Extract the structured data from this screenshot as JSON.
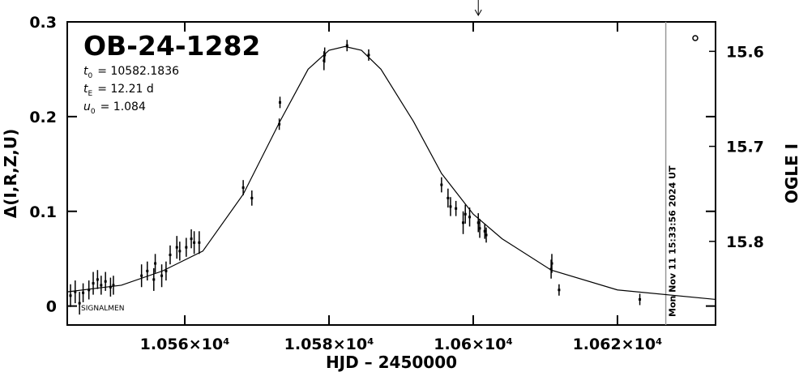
{
  "chart_data": {
    "type": "scatter",
    "title": "OB-24-1282",
    "params": [
      {
        "symbol": "t",
        "sub": "0",
        "text": "= 10582.1836"
      },
      {
        "symbol": "t",
        "sub": "E",
        "text": "= 12.21 d"
      },
      {
        "symbol": "u",
        "sub": "0",
        "text": "= 1.084"
      }
    ],
    "xlabel": "HJD – 2450000",
    "ylabel": "Δ(I,R,Z,U)",
    "y2label": "OGLE I",
    "footnote": "SIGNALMEN",
    "xlim": [
      10543.7,
      10633.6
    ],
    "xticks": [
      {
        "value": 10560,
        "label": "1.056×10⁴"
      },
      {
        "value": 10580,
        "label": "1.058×10⁴"
      },
      {
        "value": 10600,
        "label": "1.06×10⁴"
      },
      {
        "value": 10620,
        "label": "1.062×10⁴"
      }
    ],
    "ylim": [
      -0.02,
      0.3
    ],
    "yticks": [
      0,
      0.1,
      0.2,
      0.3
    ],
    "y2lim": [
      15.888,
      15.569
    ],
    "y2ticks": [
      15.6,
      15.7,
      15.8
    ],
    "points": {
      "color": "#000000",
      "x": [
        10544.15,
        10544.8,
        10545.4,
        10545.9,
        10546.7,
        10547.3,
        10547.9,
        10548.4,
        10549.0,
        10549.7,
        10550.1,
        10554.0,
        10554.8,
        10555.7,
        10555.9,
        10556.8,
        10557.4,
        10557.97,
        10558.9,
        10559.3,
        10560.2,
        10560.9,
        10561.3,
        10562.0,
        10568.1,
        10569.3,
        10573.1,
        10573.2,
        10579.3,
        10579.4,
        10582.5,
        10585.5,
        10595.6,
        10596.5,
        10596.85,
        10597.6,
        10598.6,
        10598.9,
        10599.5,
        10600.7,
        10600.9,
        10601.6,
        10601.8,
        10610.8,
        10610.9,
        10611.9,
        10623.1
      ],
      "values": [
        0.011,
        0.015,
        0.003,
        0.014,
        0.017,
        0.024,
        0.028,
        0.022,
        0.026,
        0.02,
        0.022,
        0.032,
        0.037,
        0.028,
        0.045,
        0.032,
        0.037,
        0.054,
        0.062,
        0.058,
        0.062,
        0.071,
        0.067,
        0.067,
        0.125,
        0.114,
        0.192,
        0.215,
        0.259,
        0.265,
        0.275,
        0.265,
        0.128,
        0.114,
        0.105,
        0.103,
        0.088,
        0.097,
        0.094,
        0.088,
        0.082,
        0.079,
        0.075,
        0.039,
        0.045,
        0.017,
        0.007
      ],
      "errors": [
        0.012,
        0.012,
        0.012,
        0.01,
        0.01,
        0.012,
        0.01,
        0.01,
        0.01,
        0.01,
        0.01,
        0.012,
        0.01,
        0.012,
        0.01,
        0.012,
        0.01,
        0.01,
        0.012,
        0.01,
        0.01,
        0.01,
        0.012,
        0.012,
        0.008,
        0.008,
        0.006,
        0.006,
        0.01,
        0.008,
        0.006,
        0.006,
        0.008,
        0.01,
        0.01,
        0.008,
        0.012,
        0.01,
        0.01,
        0.01,
        0.01,
        0.008,
        0.008,
        0.01,
        0.01,
        0.006,
        0.006
      ]
    },
    "model": {
      "color": "#000000",
      "x": [
        10543.7,
        10551.2,
        10556.9,
        10562.5,
        10568.1,
        10573.2,
        10577.1,
        10580.0,
        10582.2,
        10584.5,
        10587.2,
        10591.7,
        10595.6,
        10600.0,
        10604.0,
        10610.8,
        10620.0,
        10633.6
      ],
      "values": [
        0.015,
        0.022,
        0.037,
        0.058,
        0.118,
        0.195,
        0.25,
        0.27,
        0.274,
        0.27,
        0.25,
        0.195,
        0.14,
        0.097,
        0.071,
        0.038,
        0.017,
        0.007
      ]
    },
    "vline": {
      "x": 10626.7,
      "label": "Mon Nov 11 15:33:56 2024 UT",
      "color": "#999999"
    },
    "arrow_x": 10600.7
  }
}
